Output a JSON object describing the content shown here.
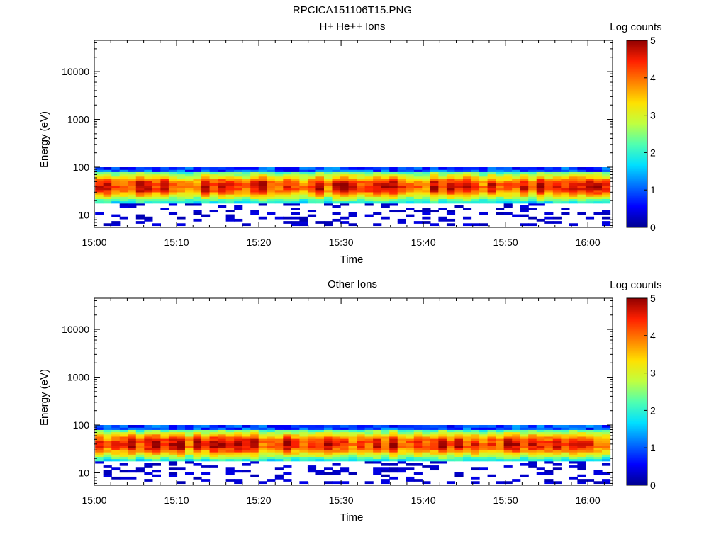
{
  "figure": {
    "title": "RPCICA151106T15.PNG"
  },
  "colors": {
    "axis": "#000000",
    "background": "#ffffff",
    "colormap": [
      "#00008f",
      "#0000ff",
      "#0070ff",
      "#00e0ff",
      "#50ffb0",
      "#c0ff40",
      "#ffe000",
      "#ff8000",
      "#ff2000",
      "#900000"
    ]
  },
  "chart_data": [
    {
      "type": "heatmap",
      "title": "H+ He++ Ions",
      "xlabel": "Time",
      "ylabel": "Energy (eV)",
      "x_start": "15:00",
      "x_end": "16:03",
      "xticks": [
        "15:00",
        "15:10",
        "15:20",
        "15:30",
        "15:40",
        "15:50",
        "16:00"
      ],
      "y_scale": "log",
      "ylim": [
        5.5,
        45000
      ],
      "yticks": [
        "10",
        "100",
        "1000",
        "10000"
      ],
      "energy_range_with_data": [
        6,
        100
      ],
      "peak_energy": 40,
      "colorbar": {
        "title": "Log counts",
        "range": [
          0,
          5
        ],
        "ticks": [
          "0",
          "1",
          "2",
          "3",
          "4",
          "5"
        ]
      }
    },
    {
      "type": "heatmap",
      "title": "Other Ions",
      "xlabel": "Time",
      "ylabel": "Energy (eV)",
      "x_start": "15:00",
      "x_end": "16:03",
      "xticks": [
        "15:00",
        "15:10",
        "15:20",
        "15:30",
        "15:40",
        "15:50",
        "16:00"
      ],
      "y_scale": "log",
      "ylim": [
        5.5,
        45000
      ],
      "yticks": [
        "10",
        "100",
        "1000",
        "10000"
      ],
      "energy_range_with_data": [
        6,
        100
      ],
      "peak_energy": 40,
      "colorbar": {
        "title": "Log counts",
        "range": [
          0,
          5
        ],
        "ticks": [
          "0",
          "1",
          "2",
          "3",
          "4",
          "5"
        ]
      }
    }
  ]
}
